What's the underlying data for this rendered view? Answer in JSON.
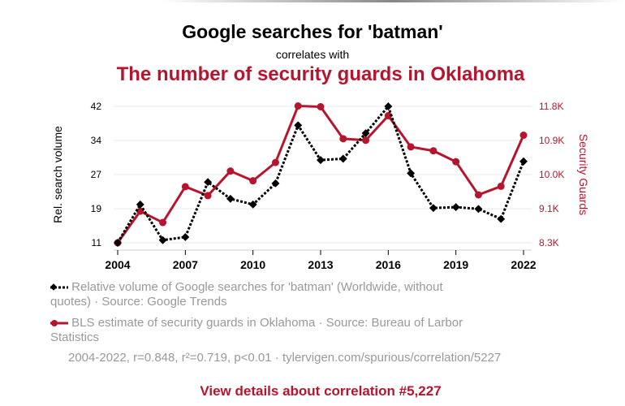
{
  "header": {
    "title": "Google searches for 'batman'",
    "subtitle": "correlates with",
    "title2": "The number of security guards in Oklahoma"
  },
  "chart_data": {
    "type": "line",
    "x": [
      2004,
      2005,
      2006,
      2007,
      2008,
      2009,
      2010,
      2011,
      2012,
      2013,
      2014,
      2015,
      2016,
      2017,
      2018,
      2019,
      2020,
      2021,
      2022
    ],
    "x_ticks": [
      "2004",
      "2007",
      "2010",
      "2013",
      "2016",
      "2019",
      "2022"
    ],
    "series": [
      {
        "name": "Relative volume of Google searches for 'batman' (Worldwide, without quotes)",
        "axis": "left",
        "color": "#000000",
        "style": "dotted",
        "marker": "diamond",
        "values": [
          11,
          19.7,
          11.6,
          12.3,
          24.8,
          21,
          19.7,
          24.5,
          37.7,
          29.8,
          30.1,
          35.9,
          42,
          26.8,
          18.9,
          19.1,
          18.7,
          16.4,
          29.5
        ]
      },
      {
        "name": "BLS estimate of security guards in Oklahoma",
        "axis": "right",
        "color": "#b5162e",
        "style": "solid",
        "marker": "circle",
        "values": [
          8300,
          9110,
          8820,
          9740,
          9510,
          10140,
          9890,
          10360,
          11810,
          11790,
          10970,
          10930,
          11560,
          10760,
          10660,
          10380,
          9530,
          9750,
          11060
        ]
      }
    ],
    "left_axis": {
      "label": "Rel. search volume",
      "ylim": [
        11,
        42
      ],
      "ticks": [
        "42",
        "34",
        "27",
        "19",
        "11"
      ]
    },
    "right_axis": {
      "label": "Security Guards",
      "ylim": [
        8300,
        11800
      ],
      "ticks": [
        "11.8K",
        "10.9K",
        "10.0K",
        "9.1K",
        "8.3K"
      ]
    },
    "grid": true
  },
  "legend": {
    "item1": "Relative volume of Google searches for 'batman' (Worldwide, without quotes) · Source: Google Trends",
    "item2": "BLS estimate of security guards in Oklahoma · Source: Bureau of Larbor Statistics"
  },
  "stats": "2004-2022, r=0.848, r²=0.719, p<0.01 · tylervigen.com/spurious/correlation/5227",
  "link": "View details about correlation #5,227"
}
